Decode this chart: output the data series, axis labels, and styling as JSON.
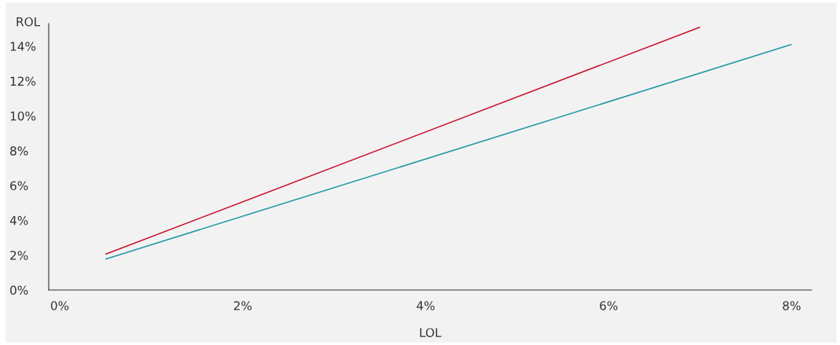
{
  "chart_data": {
    "type": "line",
    "xlabel": "LOL",
    "ylabel": "ROL",
    "series": [
      {
        "color": "#c8102e",
        "x": [
          0.5,
          7
        ],
        "values": [
          2.05,
          15.1
        ]
      },
      {
        "color": "#1e98a6",
        "x": [
          0.5,
          8
        ],
        "values": [
          1.77,
          14.1
        ]
      }
    ],
    "xlim": [
      -0.12,
      8.22
    ],
    "ylim": [
      0,
      15.3
    ],
    "xticks": [
      {
        "value": 0,
        "label": "0%"
      },
      {
        "value": 2,
        "label": "2%"
      },
      {
        "value": 4,
        "label": "4%"
      },
      {
        "value": 6,
        "label": "6%"
      },
      {
        "value": 8,
        "label": "8%"
      }
    ],
    "yticks": [
      {
        "value": 0,
        "label": "0%"
      },
      {
        "value": 2,
        "label": "2%"
      },
      {
        "value": 4,
        "label": "4%"
      },
      {
        "value": 6,
        "label": "6%"
      },
      {
        "value": 8,
        "label": "8%"
      },
      {
        "value": 10,
        "label": "10%"
      },
      {
        "value": 12,
        "label": "12%"
      },
      {
        "value": 14,
        "label": "14%"
      }
    ],
    "grid": false,
    "legend": false
  }
}
